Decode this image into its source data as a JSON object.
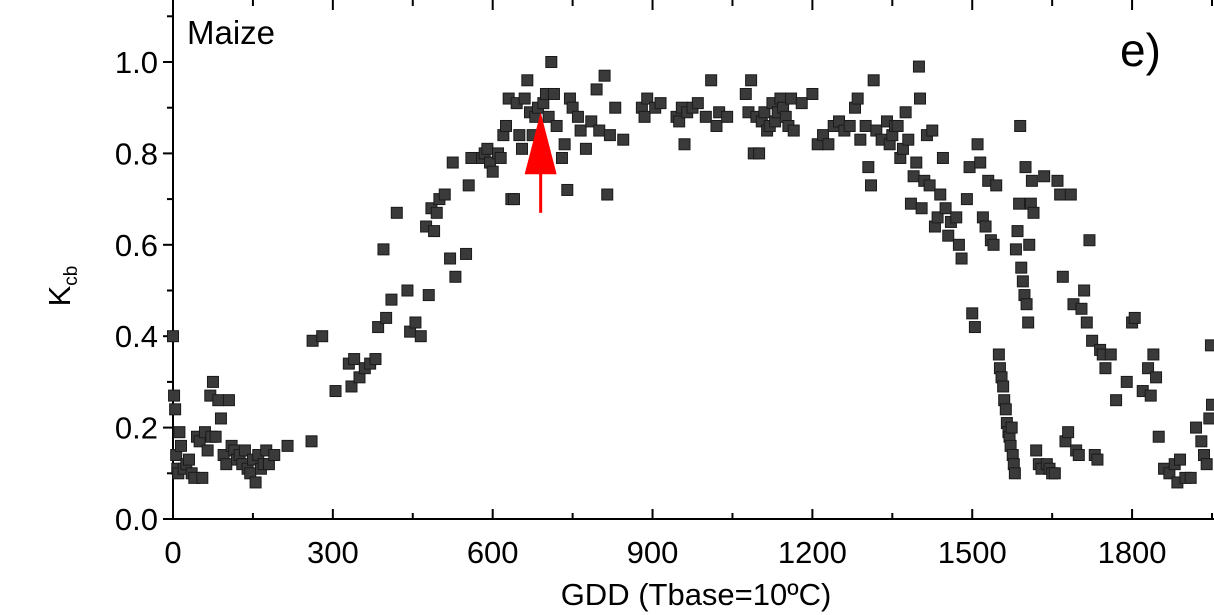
{
  "chart_data": {
    "type": "scatter",
    "crop_label": "Maize",
    "panel_label": "e)",
    "xlabel": "GDD (Tbase=10ºC)",
    "ylabel_main": "K",
    "ylabel_sub": "cb",
    "xlim": [
      0,
      1950
    ],
    "ylim": [
      0,
      1.0
    ],
    "xticks": [
      "0",
      "300",
      "600",
      "900",
      "1200",
      "1500",
      "1800"
    ],
    "yticks": [
      "0.0",
      "0.2",
      "0.4",
      "0.6",
      "0.8",
      "1.0"
    ],
    "marker_color": "#3a3a3a",
    "annotation": {
      "type": "arrow",
      "color": "#ff0000",
      "x": 690,
      "y_from": 0.67,
      "y_to": 0.89
    },
    "series": [
      {
        "points": [
          [
            0,
            0.4
          ],
          [
            2,
            0.27
          ],
          [
            4,
            0.24
          ],
          [
            6,
            0.14
          ],
          [
            8,
            0.11
          ],
          [
            10,
            0.1
          ],
          [
            12,
            0.19
          ],
          [
            15,
            0.16
          ],
          [
            20,
            0.11
          ],
          [
            25,
            0.12
          ],
          [
            30,
            0.13
          ],
          [
            35,
            0.1
          ],
          [
            40,
            0.09
          ],
          [
            45,
            0.18
          ],
          [
            50,
            0.17
          ],
          [
            55,
            0.09
          ],
          [
            60,
            0.19
          ],
          [
            65,
            0.15
          ],
          [
            70,
            0.27
          ],
          [
            72,
            0.18
          ],
          [
            75,
            0.3
          ],
          [
            80,
            0.18
          ],
          [
            85,
            0.26
          ],
          [
            90,
            0.22
          ],
          [
            95,
            0.14
          ],
          [
            100,
            0.12
          ],
          [
            105,
            0.26
          ],
          [
            110,
            0.16
          ],
          [
            115,
            0.15
          ],
          [
            120,
            0.13
          ],
          [
            125,
            0.14
          ],
          [
            130,
            0.12
          ],
          [
            135,
            0.15
          ],
          [
            140,
            0.11
          ],
          [
            145,
            0.1
          ],
          [
            150,
            0.13
          ],
          [
            155,
            0.08
          ],
          [
            160,
            0.14
          ],
          [
            165,
            0.11
          ],
          [
            170,
            0.12
          ],
          [
            175,
            0.15
          ],
          [
            180,
            0.12
          ],
          [
            190,
            0.14
          ],
          [
            215,
            0.16
          ],
          [
            260,
            0.17
          ],
          [
            262,
            0.39
          ],
          [
            280,
            0.4
          ],
          [
            305,
            0.28
          ],
          [
            330,
            0.34
          ],
          [
            335,
            0.29
          ],
          [
            340,
            0.35
          ],
          [
            350,
            0.31
          ],
          [
            360,
            0.33
          ],
          [
            370,
            0.34
          ],
          [
            380,
            0.35
          ],
          [
            385,
            0.42
          ],
          [
            395,
            0.59
          ],
          [
            400,
            0.44
          ],
          [
            410,
            0.48
          ],
          [
            420,
            0.67
          ],
          [
            440,
            0.5
          ],
          [
            445,
            0.41
          ],
          [
            455,
            0.43
          ],
          [
            465,
            0.4
          ],
          [
            475,
            0.64
          ],
          [
            480,
            0.49
          ],
          [
            485,
            0.68
          ],
          [
            490,
            0.63
          ],
          [
            495,
            0.67
          ],
          [
            500,
            0.7
          ],
          [
            510,
            0.71
          ],
          [
            520,
            0.57
          ],
          [
            525,
            0.78
          ],
          [
            530,
            0.53
          ],
          [
            550,
            0.58
          ],
          [
            555,
            0.73
          ],
          [
            560,
            0.79
          ],
          [
            580,
            0.79
          ],
          [
            585,
            0.8
          ],
          [
            590,
            0.81
          ],
          [
            595,
            0.78
          ],
          [
            600,
            0.76
          ],
          [
            610,
            0.8
          ],
          [
            615,
            0.79
          ],
          [
            620,
            0.84
          ],
          [
            625,
            0.86
          ],
          [
            630,
            0.92
          ],
          [
            635,
            0.7
          ],
          [
            640,
            0.7
          ],
          [
            645,
            0.91
          ],
          [
            650,
            0.84
          ],
          [
            655,
            0.81
          ],
          [
            660,
            0.92
          ],
          [
            665,
            0.96
          ],
          [
            670,
            0.89
          ],
          [
            675,
            0.84
          ],
          [
            680,
            0.88
          ],
          [
            685,
            0.9
          ],
          [
            695,
            0.91
          ],
          [
            700,
            0.93
          ],
          [
            705,
            0.88
          ],
          [
            710,
            1.0
          ],
          [
            715,
            0.93
          ],
          [
            720,
            0.86
          ],
          [
            730,
            0.79
          ],
          [
            735,
            0.82
          ],
          [
            740,
            0.72
          ],
          [
            745,
            0.92
          ],
          [
            750,
            0.9
          ],
          [
            760,
            0.88
          ],
          [
            765,
            0.85
          ],
          [
            775,
            0.81
          ],
          [
            785,
            0.87
          ],
          [
            795,
            0.94
          ],
          [
            800,
            0.85
          ],
          [
            810,
            0.97
          ],
          [
            815,
            0.71
          ],
          [
            820,
            0.84
          ],
          [
            830,
            0.9
          ],
          [
            845,
            0.83
          ],
          [
            880,
            0.9
          ],
          [
            885,
            0.88
          ],
          [
            890,
            0.92
          ],
          [
            905,
            0.9
          ],
          [
            915,
            0.91
          ],
          [
            945,
            0.88
          ],
          [
            950,
            0.87
          ],
          [
            955,
            0.9
          ],
          [
            960,
            0.82
          ],
          [
            965,
            0.89
          ],
          [
            975,
            0.9
          ],
          [
            985,
            0.91
          ],
          [
            1000,
            0.88
          ],
          [
            1010,
            0.96
          ],
          [
            1020,
            0.86
          ],
          [
            1025,
            0.89
          ],
          [
            1040,
            0.88
          ],
          [
            1075,
            0.93
          ],
          [
            1080,
            0.89
          ],
          [
            1085,
            0.96
          ],
          [
            1090,
            0.8
          ],
          [
            1095,
            0.88
          ],
          [
            1100,
            0.8
          ],
          [
            1105,
            0.87
          ],
          [
            1110,
            0.89
          ],
          [
            1115,
            0.85
          ],
          [
            1120,
            0.86
          ],
          [
            1125,
            0.91
          ],
          [
            1130,
            0.87
          ],
          [
            1135,
            0.89
          ],
          [
            1140,
            0.92
          ],
          [
            1145,
            0.9
          ],
          [
            1150,
            0.88
          ],
          [
            1155,
            0.86
          ],
          [
            1160,
            0.92
          ],
          [
            1165,
            0.85
          ],
          [
            1180,
            0.91
          ],
          [
            1200,
            0.93
          ],
          [
            1210,
            0.82
          ],
          [
            1220,
            0.84
          ],
          [
            1230,
            0.82
          ],
          [
            1240,
            0.86
          ],
          [
            1250,
            0.87
          ],
          [
            1260,
            0.85
          ],
          [
            1270,
            0.86
          ],
          [
            1280,
            0.9
          ],
          [
            1285,
            0.92
          ],
          [
            1290,
            0.83
          ],
          [
            1300,
            0.86
          ],
          [
            1305,
            0.77
          ],
          [
            1310,
            0.73
          ],
          [
            1315,
            0.96
          ],
          [
            1320,
            0.85
          ],
          [
            1330,
            0.83
          ],
          [
            1340,
            0.87
          ],
          [
            1345,
            0.82
          ],
          [
            1350,
            0.84
          ],
          [
            1355,
            0.86
          ],
          [
            1360,
            0.86
          ],
          [
            1365,
            0.79
          ],
          [
            1370,
            0.81
          ],
          [
            1375,
            0.89
          ],
          [
            1380,
            0.83
          ],
          [
            1385,
            0.69
          ],
          [
            1390,
            0.75
          ],
          [
            1395,
            0.78
          ],
          [
            1400,
            0.99
          ],
          [
            1402,
            0.92
          ],
          [
            1405,
            0.68
          ],
          [
            1410,
            0.74
          ],
          [
            1415,
            0.84
          ],
          [
            1420,
            0.73
          ],
          [
            1425,
            0.85
          ],
          [
            1430,
            0.64
          ],
          [
            1435,
            0.66
          ],
          [
            1440,
            0.71
          ],
          [
            1445,
            0.79
          ],
          [
            1450,
            0.68
          ],
          [
            1455,
            0.62
          ],
          [
            1460,
            0.65
          ],
          [
            1470,
            0.66
          ],
          [
            1475,
            0.6
          ],
          [
            1480,
            0.57
          ],
          [
            1490,
            0.7
          ],
          [
            1495,
            0.77
          ],
          [
            1500,
            0.45
          ],
          [
            1505,
            0.42
          ],
          [
            1510,
            0.82
          ],
          [
            1515,
            0.78
          ],
          [
            1520,
            0.66
          ],
          [
            1525,
            0.64
          ],
          [
            1530,
            0.74
          ],
          [
            1535,
            0.61
          ],
          [
            1540,
            0.6
          ],
          [
            1545,
            0.73
          ],
          [
            1550,
            0.36
          ],
          [
            1552,
            0.33
          ],
          [
            1555,
            0.31
          ],
          [
            1558,
            0.29
          ],
          [
            1560,
            0.26
          ],
          [
            1563,
            0.24
          ],
          [
            1565,
            0.21
          ],
          [
            1568,
            0.19
          ],
          [
            1570,
            0.18
          ],
          [
            1572,
            0.16
          ],
          [
            1574,
            0.2
          ],
          [
            1576,
            0.14
          ],
          [
            1578,
            0.12
          ],
          [
            1580,
            0.1
          ],
          [
            1582,
            0.59
          ],
          [
            1585,
            0.63
          ],
          [
            1588,
            0.69
          ],
          [
            1590,
            0.86
          ],
          [
            1592,
            0.55
          ],
          [
            1595,
            0.52
          ],
          [
            1598,
            0.49
          ],
          [
            1600,
            0.77
          ],
          [
            1602,
            0.47
          ],
          [
            1605,
            0.43
          ],
          [
            1607,
            0.6
          ],
          [
            1610,
            0.69
          ],
          [
            1612,
            0.74
          ],
          [
            1615,
            0.67
          ],
          [
            1620,
            0.15
          ],
          [
            1625,
            0.12
          ],
          [
            1630,
            0.11
          ],
          [
            1635,
            0.75
          ],
          [
            1640,
            0.12
          ],
          [
            1645,
            0.11
          ],
          [
            1650,
            0.1
          ],
          [
            1655,
            0.1
          ],
          [
            1660,
            0.74
          ],
          [
            1665,
            0.71
          ],
          [
            1670,
            0.53
          ],
          [
            1675,
            0.17
          ],
          [
            1680,
            0.19
          ],
          [
            1685,
            0.71
          ],
          [
            1690,
            0.47
          ],
          [
            1695,
            0.15
          ],
          [
            1700,
            0.14
          ],
          [
            1705,
            0.46
          ],
          [
            1710,
            0.5
          ],
          [
            1715,
            0.43
          ],
          [
            1720,
            0.61
          ],
          [
            1725,
            0.39
          ],
          [
            1730,
            0.14
          ],
          [
            1735,
            0.13
          ],
          [
            1740,
            0.37
          ],
          [
            1745,
            0.36
          ],
          [
            1750,
            0.33
          ],
          [
            1760,
            0.36
          ],
          [
            1770,
            0.26
          ],
          [
            1790,
            0.3
          ],
          [
            1800,
            0.43
          ],
          [
            1805,
            0.44
          ],
          [
            1820,
            0.28
          ],
          [
            1830,
            0.33
          ],
          [
            1835,
            0.27
          ],
          [
            1840,
            0.36
          ],
          [
            1845,
            0.31
          ],
          [
            1850,
            0.18
          ],
          [
            1860,
            0.11
          ],
          [
            1870,
            0.1
          ],
          [
            1880,
            0.12
          ],
          [
            1885,
            0.08
          ],
          [
            1890,
            0.13
          ],
          [
            1900,
            0.09
          ],
          [
            1910,
            0.09
          ],
          [
            1920,
            0.2
          ],
          [
            1930,
            0.17
          ],
          [
            1935,
            0.14
          ],
          [
            1940,
            0.12
          ],
          [
            1945,
            0.22
          ],
          [
            1948,
            0.38
          ],
          [
            1950,
            0.25
          ]
        ]
      }
    ]
  }
}
